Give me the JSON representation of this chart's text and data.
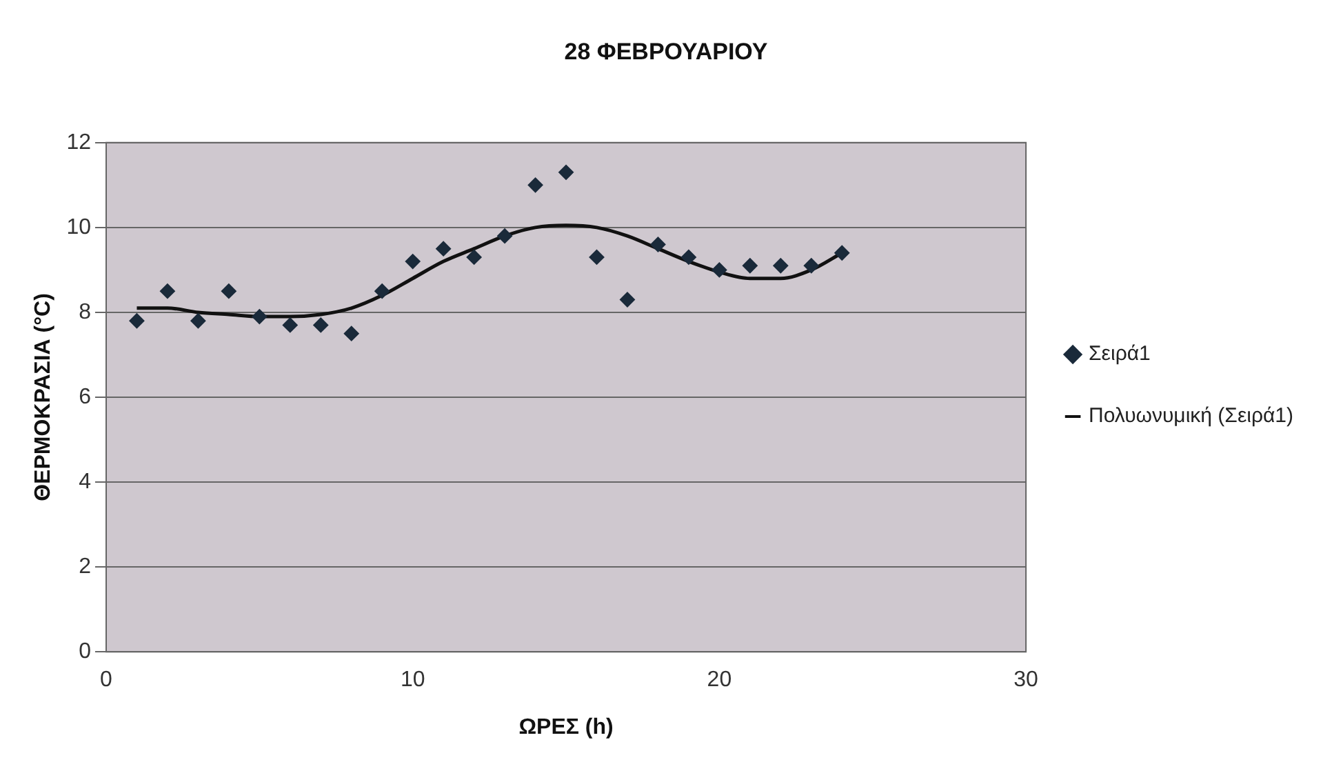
{
  "chart_data": {
    "type": "scatter",
    "title": "28 ΦΕΒΡΟΥΑΡΙΟΥ",
    "xlabel": "ΩΡΕΣ (h)",
    "ylabel": "ΘΕΡΜΟΚΡΑΣΙΑ (°C)",
    "series": [
      {
        "name": "Σειρά1",
        "color": "#1a2a3a",
        "marker": "diamond",
        "x": [
          1,
          2,
          3,
          4,
          5,
          6,
          7,
          8,
          9,
          10,
          11,
          12,
          13,
          14,
          15,
          16,
          17,
          18,
          19,
          20,
          21,
          22,
          23,
          24
        ],
        "values": [
          7.8,
          8.5,
          7.8,
          8.5,
          7.9,
          7.7,
          7.7,
          7.5,
          8.5,
          9.2,
          9.5,
          9.3,
          9.8,
          11.0,
          11.3,
          9.3,
          8.3,
          9.6,
          9.3,
          9.0,
          9.1,
          9.1,
          9.1,
          9.4
        ]
      },
      {
        "name": "Πολυωνυμική (Σειρά1)",
        "type": "line",
        "color": "#111111",
        "marker": "none",
        "line_style": "solid",
        "x": [
          1,
          2,
          3,
          4,
          5,
          6,
          7,
          8,
          9,
          10,
          11,
          12,
          13,
          14,
          15,
          16,
          17,
          18,
          19,
          20,
          21,
          22,
          23,
          24
        ],
        "values": [
          8.1,
          8.1,
          8.0,
          7.95,
          7.9,
          7.9,
          7.95,
          8.1,
          8.4,
          8.8,
          9.2,
          9.5,
          9.8,
          10.0,
          10.05,
          10.0,
          9.8,
          9.5,
          9.2,
          8.95,
          8.8,
          8.8,
          9.0,
          9.4
        ]
      }
    ],
    "xlim": [
      0,
      30
    ],
    "xticks": [
      0,
      10,
      20,
      30
    ],
    "ylim": [
      0,
      12
    ],
    "yticks": [
      0,
      2,
      4,
      6,
      8,
      10,
      12
    ],
    "grid": "y",
    "legend": "right"
  }
}
